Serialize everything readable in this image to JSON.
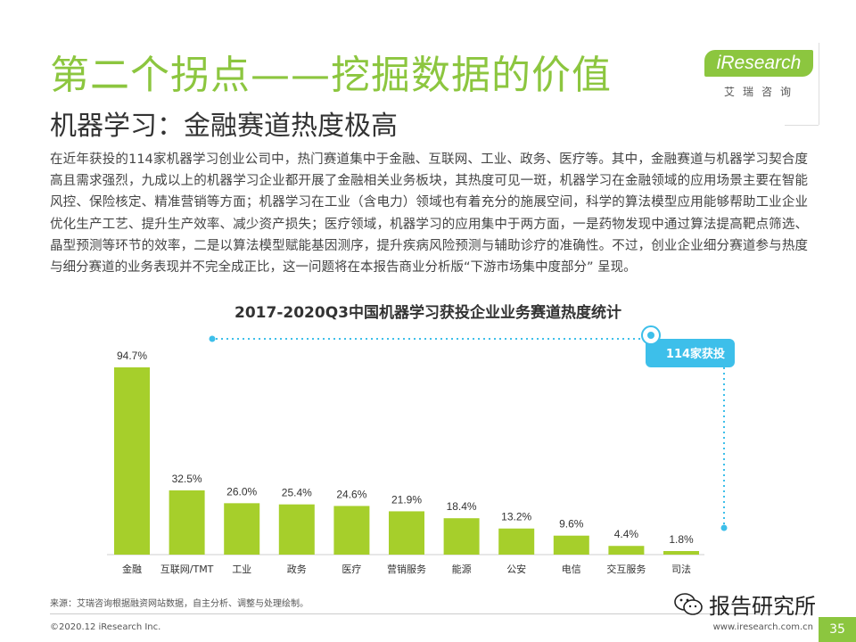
{
  "header": {
    "title": "第二个拐点——挖掘数据的价值",
    "subtitle": "机器学习：金融赛道热度极高"
  },
  "logo": {
    "name": "iResearch",
    "subtext": "艾瑞咨询"
  },
  "paragraph": "在近年获投的114家机器学习创业公司中，热门赛道集中于金融、互联网、工业、政务、医疗等。其中，金融赛道与机器学习契合度高且需求强烈，九成以上的机器学习企业都开展了金融相关业务板块，其热度可见一斑，机器学习在金融领域的应用场景主要在智能风控、保险核定、精准营销等方面；机器学习在工业（含电力）领域也有着充分的施展空间，科学的算法模型应用能够帮助工业企业优化生产工艺、提升生产效率、减少资产损失；医疗领域，机器学习的应用集中于两方面，一是药物发现中通过算法提高靶点筛选、晶型预测等环节的效率，二是以算法模型赋能基因测序，提升疾病风险预测与辅助诊疗的准确性。不过，创业企业细分赛道参与热度与细分赛道的业务表现并不完全成正比，这一问题将在本报告商业分析版“下游市场集中度部分” 呈现。",
  "chart_data": {
    "type": "bar",
    "title": "2017-2020Q3中国机器学习获投企业业务赛道热度统计",
    "categories": [
      "金融",
      "互联网/TMT",
      "工业",
      "政务",
      "医疗",
      "营销服务",
      "能源",
      "公安",
      "电信",
      "交互服务",
      "司法"
    ],
    "values": [
      94.7,
      32.5,
      26.0,
      25.4,
      24.6,
      21.9,
      18.4,
      13.2,
      9.6,
      4.4,
      1.8
    ],
    "value_labels": [
      "94.7%",
      "32.5%",
      "26.0%",
      "25.4%",
      "24.6%",
      "21.9%",
      "18.4%",
      "13.2%",
      "9.6%",
      "4.4%",
      "1.8%"
    ],
    "ylim": [
      0,
      100
    ],
    "annotation": "114家获投",
    "bar_color": "#a6cf2b",
    "accent_color": "#3dbfea"
  },
  "footer": {
    "source": "来源：艾瑞咨询根据融资网站数据，自主分析、调整与处理绘制。",
    "copyright": "©2020.12 iResearch Inc.",
    "website": "www.iresearch.com.cn",
    "page": "35",
    "watermark": "报告研究所"
  },
  "colors": {
    "accent": "#8cc63f"
  }
}
